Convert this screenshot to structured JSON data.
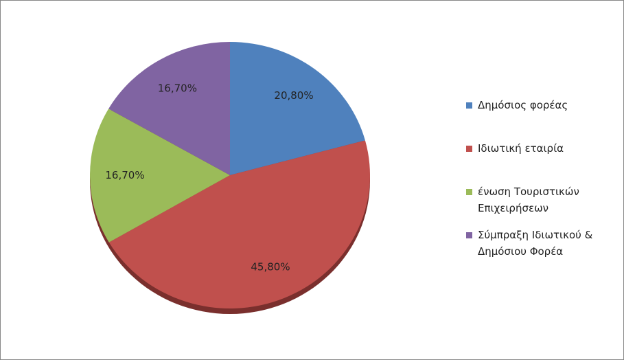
{
  "chart_data": {
    "type": "pie",
    "categories": [
      "Δημόσιος φορέας",
      "Ιδιωτική εταιρία",
      "ένωση Τουριστικών Επιχειρήσεων",
      "Σύμπραξη Ιδιωτικού & Δημόσιου Φορέα"
    ],
    "values": [
      20.8,
      45.8,
      16.7,
      16.7
    ],
    "value_labels": [
      "20,80%",
      "45,80%",
      "16,70%",
      "16,70%"
    ],
    "colors": [
      "#4f81bd",
      "#c0504d",
      "#9bbb59",
      "#8064a2"
    ],
    "legend": "right"
  }
}
